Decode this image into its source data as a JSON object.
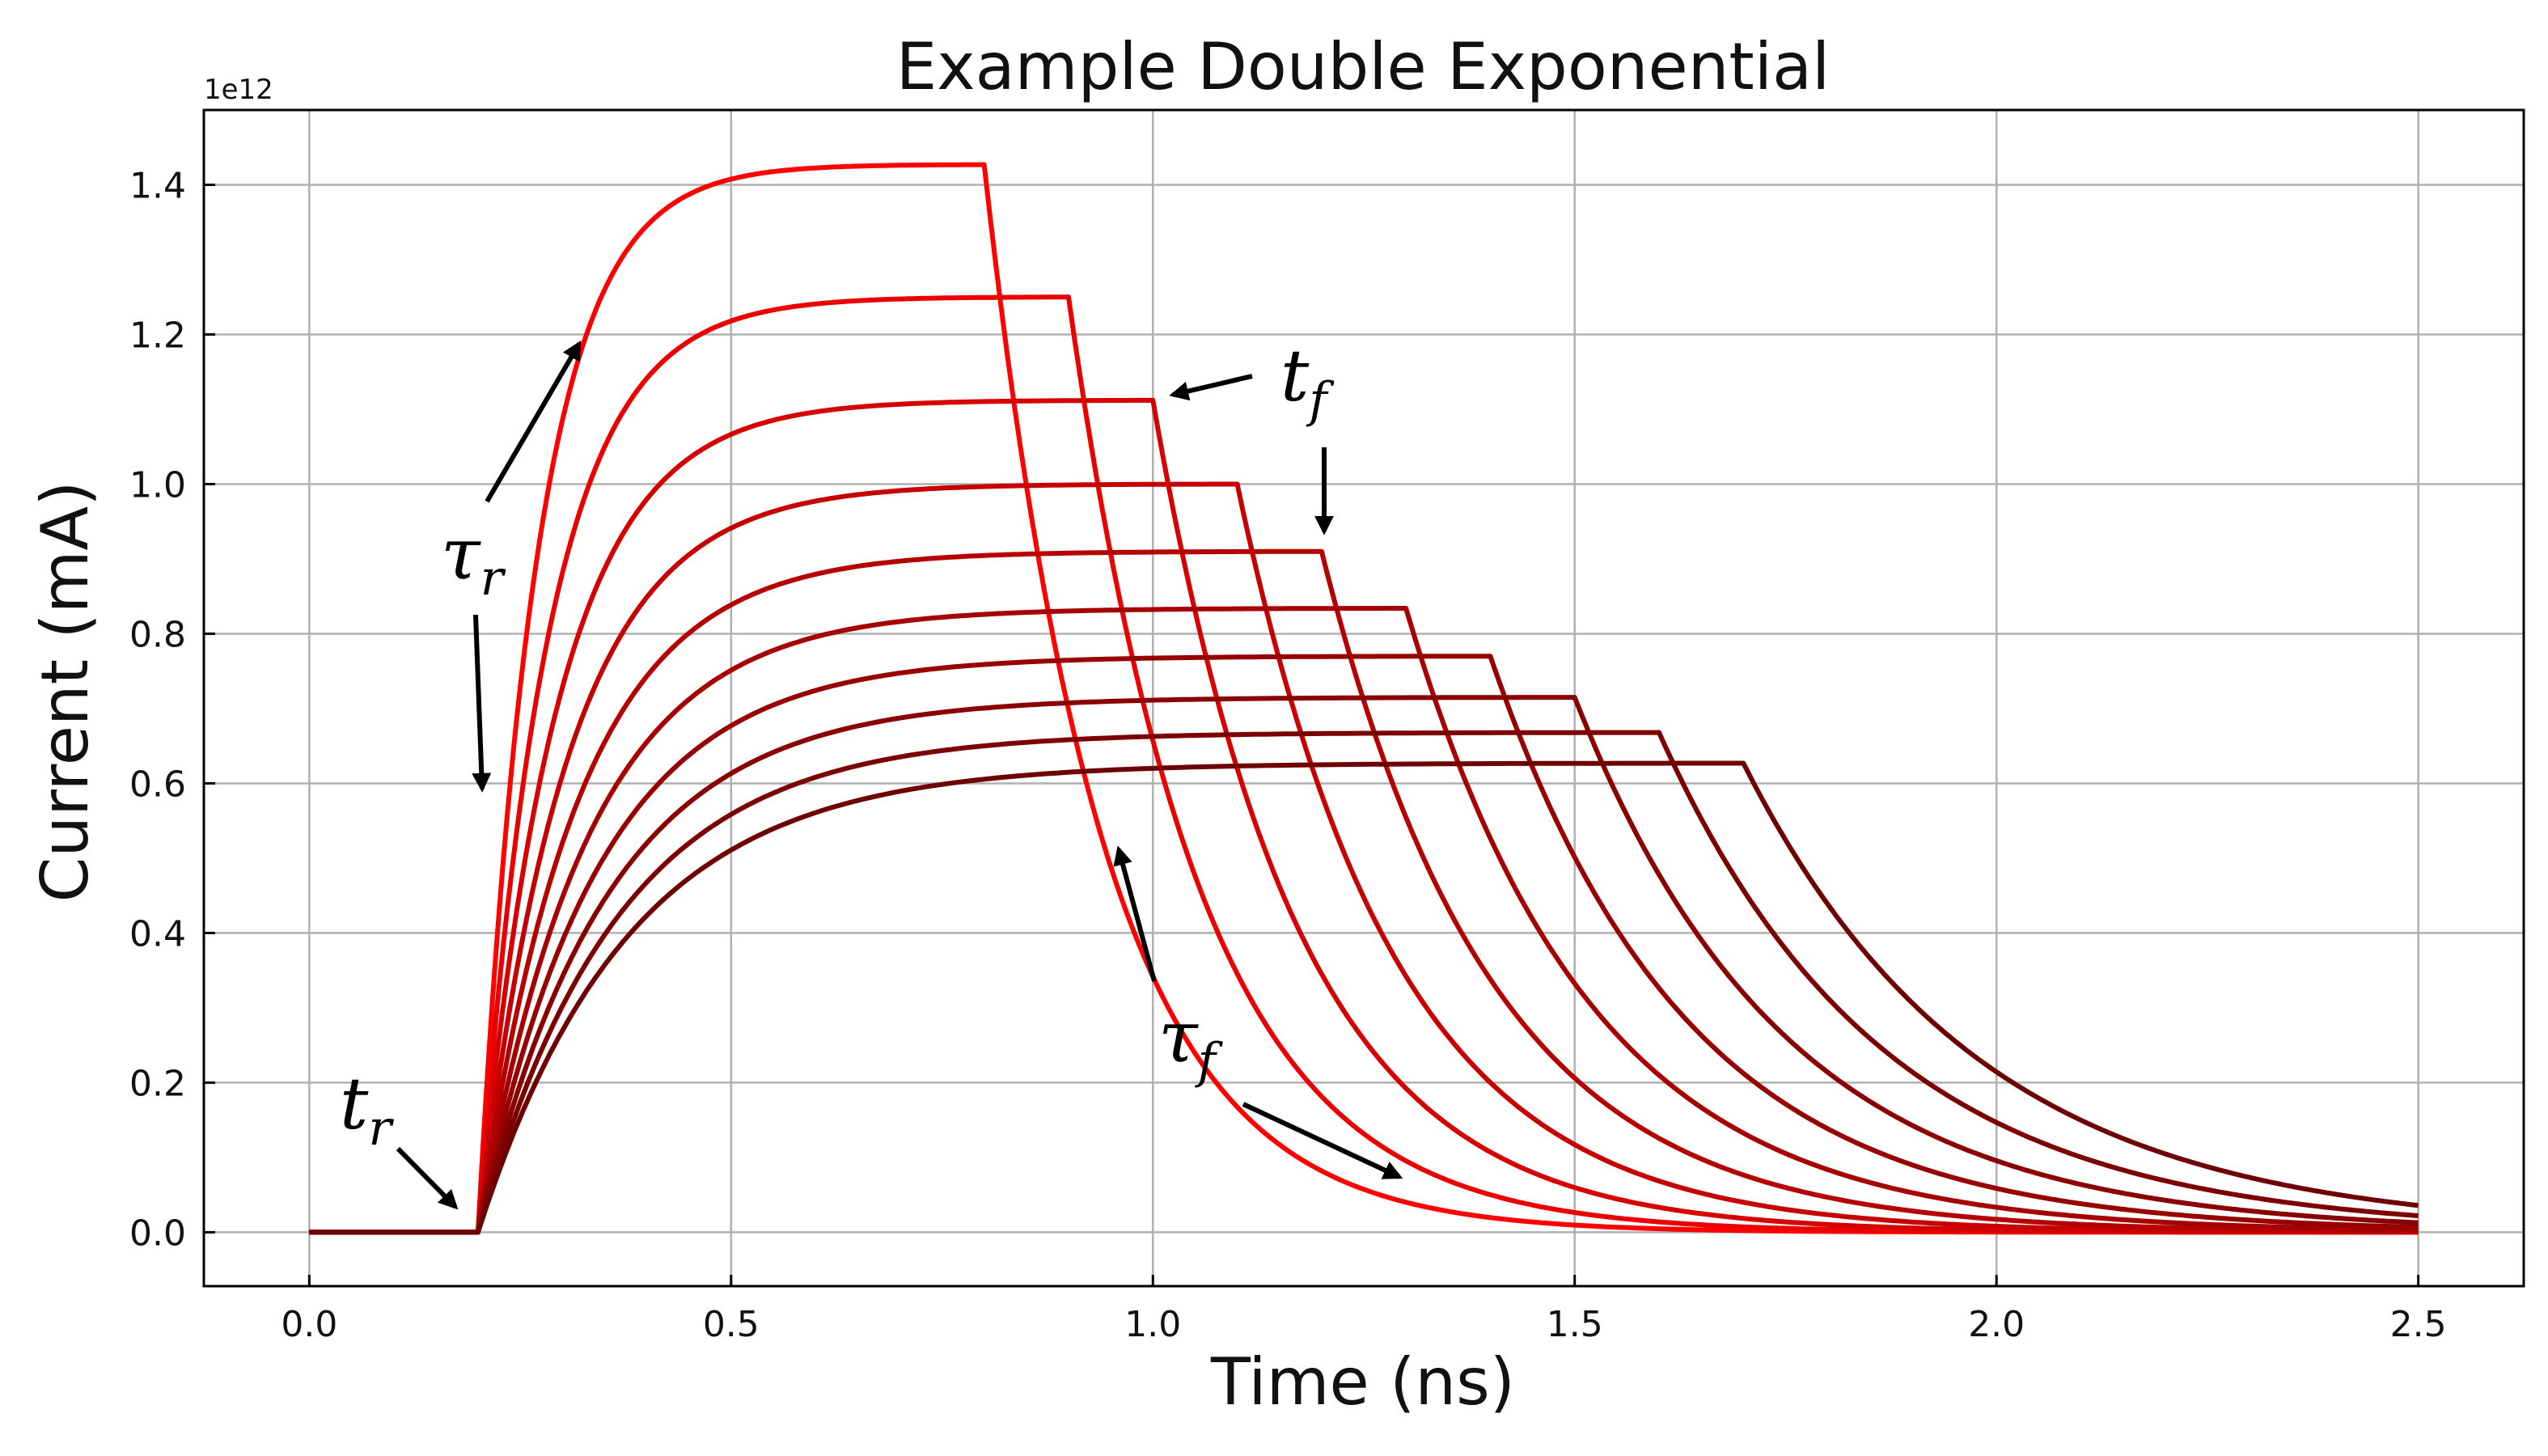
{
  "chart_data": {
    "type": "line",
    "title": "Example Double Exponential",
    "xlabel": "Time (ns)",
    "ylabel": "Current (mA)",
    "y_offset_label": "1e12",
    "xlim": [
      -0.125,
      2.625
    ],
    "ylim": [
      -0.072,
      1.5
    ],
    "x_ticks": [
      0.0,
      0.5,
      1.0,
      1.5,
      2.0,
      2.5
    ],
    "x_tick_labels": [
      "0.0",
      "0.5",
      "1.0",
      "1.5",
      "2.0",
      "2.5"
    ],
    "y_ticks": [
      0.0,
      0.2,
      0.4,
      0.6,
      0.8,
      1.0,
      1.2,
      1.4
    ],
    "y_tick_labels": [
      "0.0",
      "0.2",
      "0.4",
      "0.6",
      "0.8",
      "1.0",
      "1.2",
      "1.4"
    ],
    "grid": true,
    "legend": false,
    "pulse_start": 0.2,
    "x_end": 2.5,
    "series": [
      {
        "fall_time": 0.8,
        "peak": 1.427,
        "color": "#ff0000"
      },
      {
        "fall_time": 0.9,
        "peak": 1.25,
        "color": "#ea0000"
      },
      {
        "fall_time": 1.0,
        "peak": 1.112,
        "color": "#d70000"
      },
      {
        "fall_time": 1.1,
        "peak": 1.0,
        "color": "#c60000"
      },
      {
        "fall_time": 1.2,
        "peak": 0.91,
        "color": "#b60000"
      },
      {
        "fall_time": 1.3,
        "peak": 0.834,
        "color": "#a60000"
      },
      {
        "fall_time": 1.4,
        "peak": 0.77,
        "color": "#980000"
      },
      {
        "fall_time": 1.5,
        "peak": 0.715,
        "color": "#8a0000"
      },
      {
        "fall_time": 1.6,
        "peak": 0.668,
        "color": "#7c0000"
      },
      {
        "fall_time": 1.7,
        "peak": 0.627,
        "color": "#6e0000"
      }
    ],
    "annotations": [
      {
        "id": "tr",
        "text": "t",
        "sub": "r"
      },
      {
        "id": "tau-r",
        "text": "τ",
        "sub": "r"
      },
      {
        "id": "tf",
        "text": "t",
        "sub": "f"
      },
      {
        "id": "tau-f",
        "text": "τ",
        "sub": "f"
      }
    ]
  }
}
